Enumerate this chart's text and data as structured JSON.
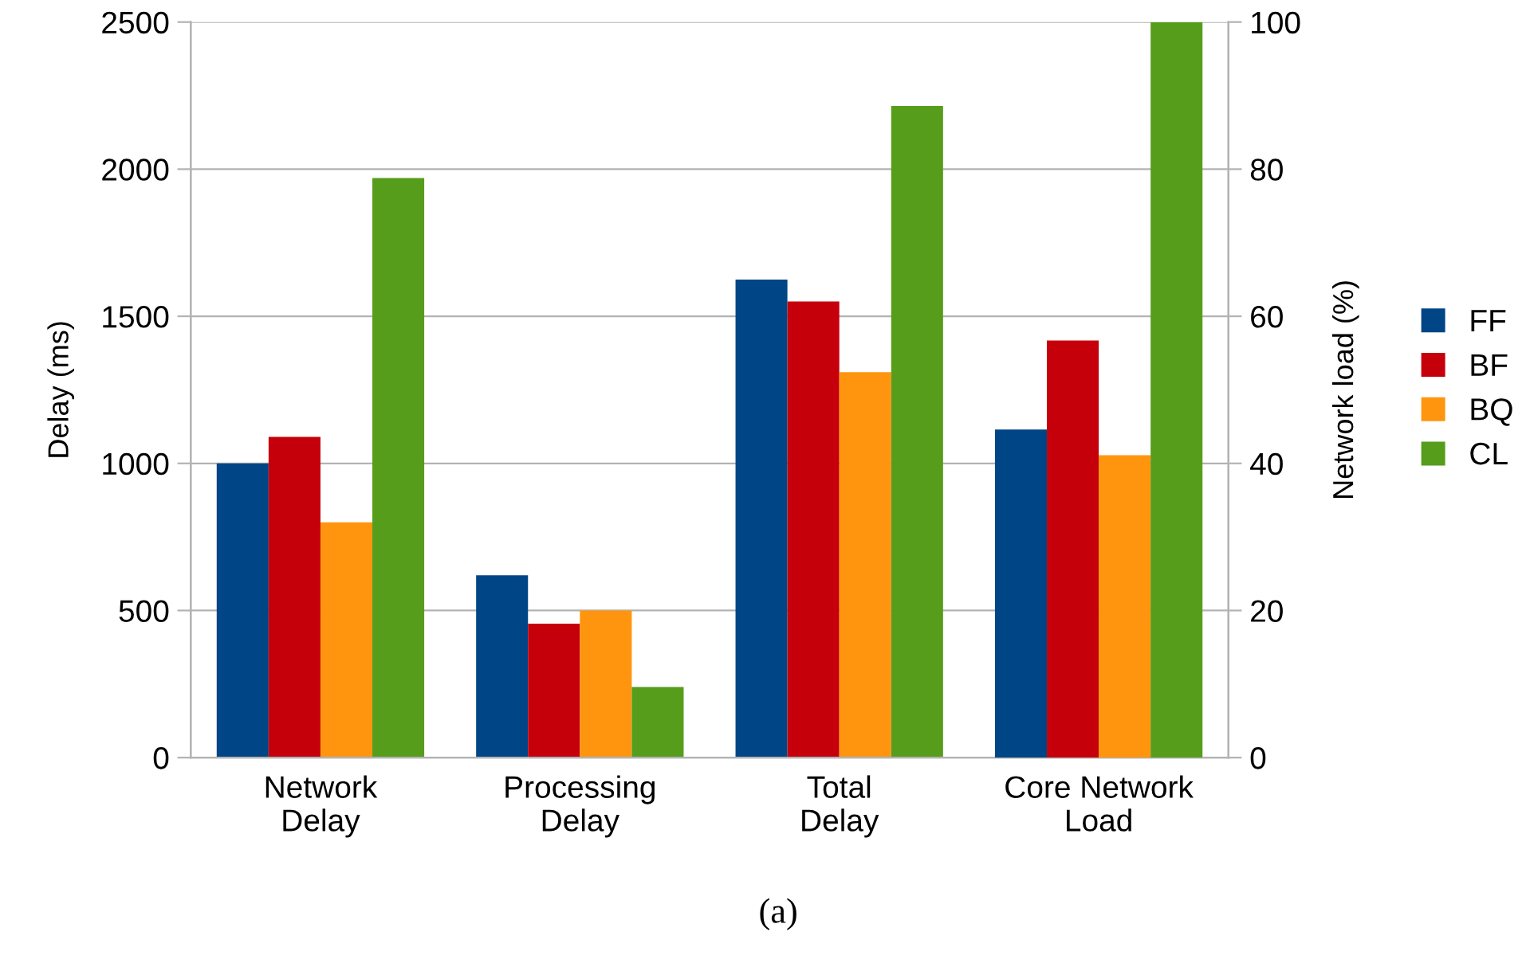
{
  "chart_data": {
    "type": "bar",
    "categories": [
      "Network\nDelay",
      "Processing\nDelay",
      "Total\nDelay",
      "Core Network\nLoad"
    ],
    "ylabel": "Delay (ms)",
    "y2label": "Network load (%)",
    "ylim": [
      0,
      2500
    ],
    "yticks": [
      0,
      500,
      1000,
      1500,
      2000,
      2500
    ],
    "y2lim": [
      0,
      100
    ],
    "y2ticks": [
      0,
      20,
      40,
      60,
      80,
      100
    ],
    "series": [
      {
        "name": "FF",
        "color": "#004586",
        "values": [
          1000,
          620,
          1625,
          null
        ]
      },
      {
        "name": "BF",
        "color": "#c5000b",
        "values": [
          1090,
          455,
          1550,
          null
        ]
      },
      {
        "name": "BQ",
        "color": "#ff950e",
        "values": [
          800,
          500,
          1310,
          null
        ]
      },
      {
        "name": "CL",
        "color": "#579d1c",
        "values": [
          1970,
          240,
          2215,
          null
        ]
      },
      {
        "color": "#004586",
        "axis": "y2",
        "values": [
          null,
          null,
          null,
          44.6
        ]
      },
      {
        "color": "#c5000b",
        "axis": "y2",
        "values": [
          null,
          null,
          null,
          56.7
        ]
      },
      {
        "color": "#ff950e",
        "axis": "y2",
        "values": [
          null,
          null,
          null,
          41.1
        ]
      },
      {
        "color": "#579d1c",
        "axis": "y2",
        "values": [
          null,
          null,
          null,
          100
        ]
      }
    ],
    "grid": "y",
    "legend": "right",
    "annotations": [
      "(a)"
    ]
  }
}
